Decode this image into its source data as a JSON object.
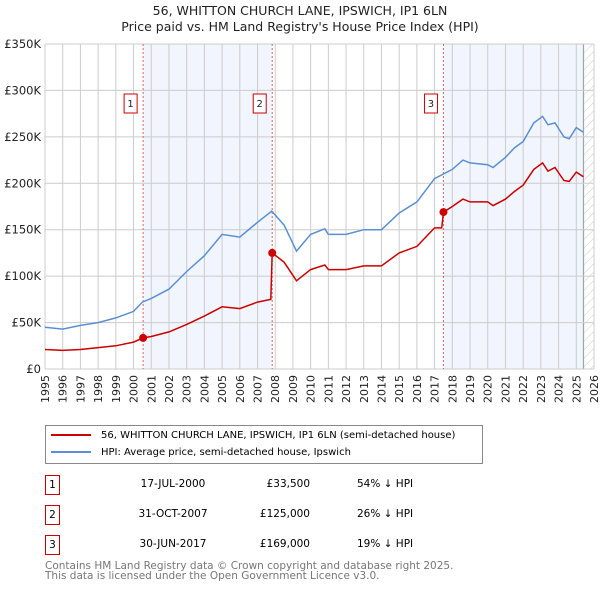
{
  "title_line1": "56, WHITTON CHURCH LANE, IPSWICH, IP1 6LN",
  "title_line2": "Price paid vs. HM Land Registry's House Price Index (HPI)",
  "chart_data": {
    "type": "line",
    "title": "56, WHITTON CHURCH LANE, IPSWICH, IP1 6LN - Price paid vs. HM Land Registry's House Price Index (HPI)",
    "xlim": [
      1995,
      2026
    ],
    "ylim": [
      0,
      350000
    ],
    "grid": true,
    "yticks": [
      0,
      50000,
      100000,
      150000,
      200000,
      250000,
      300000,
      350000
    ],
    "ytick_labels": [
      "£0",
      "£50K",
      "£100K",
      "£150K",
      "£200K",
      "£250K",
      "£300K",
      "£350K"
    ],
    "xticks": [
      "1995",
      "1996",
      "1997",
      "1998",
      "1999",
      "2000",
      "2001",
      "2002",
      "2003",
      "2004",
      "2005",
      "2006",
      "2007",
      "2008",
      "2009",
      "2010",
      "2011",
      "2012",
      "2013",
      "2014",
      "2015",
      "2016",
      "2017",
      "2018",
      "2019",
      "2020",
      "2021",
      "2022",
      "2023",
      "2024",
      "2025",
      "2026"
    ],
    "shaded_ranges": [
      [
        2000.54,
        2007.83
      ],
      [
        2017.5,
        2025.5
      ]
    ],
    "data_end": 2025.4,
    "series": [
      {
        "name": "56, WHITTON CHURCH LANE, IPSWICH, IP1 6LN (semi-detached house)",
        "color": "#cc0000",
        "x": [
          1995,
          1996,
          1997,
          1998,
          1999,
          2000,
          2000.54,
          2001,
          2002,
          2003,
          2004,
          2005,
          2006,
          2007,
          2007.75,
          2007.83,
          2008.5,
          2009.2,
          2010,
          2010.8,
          2011,
          2012,
          2013,
          2014,
          2015,
          2016,
          2017,
          2017.4,
          2017.5,
          2018,
          2018.6,
          2019,
          2020,
          2020.3,
          2021,
          2021.5,
          2022,
          2022.6,
          2023.1,
          2023.4,
          2023.8,
          2024.3,
          2024.6,
          2025,
          2025.4
        ],
        "y": [
          21000,
          20000,
          21000,
          23000,
          25000,
          29000,
          33500,
          35000,
          40000,
          48000,
          57000,
          67000,
          65000,
          72000,
          75000,
          125000,
          115000,
          95000,
          107000,
          112000,
          107000,
          107000,
          111000,
          111000,
          125000,
          132000,
          152000,
          152000,
          169000,
          175000,
          183000,
          180000,
          180000,
          176000,
          183000,
          191000,
          198000,
          215000,
          222000,
          213000,
          217000,
          203000,
          202000,
          212000,
          207000
        ]
      },
      {
        "name": "HPI: Average price, semi-detached house, Ipswich",
        "color": "#5b8fd4",
        "x": [
          1995,
          1996,
          1997,
          1998,
          1999,
          2000,
          2000.5,
          2001,
          2002,
          2003,
          2004,
          2005,
          2006,
          2007,
          2007.8,
          2008.5,
          2009.2,
          2010,
          2010.8,
          2011,
          2012,
          2013,
          2014,
          2015,
          2016,
          2017,
          2018,
          2018.6,
          2019,
          2020,
          2020.3,
          2021,
          2021.5,
          2022,
          2022.6,
          2023.1,
          2023.4,
          2023.8,
          2024.3,
          2024.6,
          2025,
          2025.4
        ],
        "y": [
          45000,
          43000,
          47000,
          50000,
          55000,
          62000,
          72000,
          76000,
          86000,
          105000,
          122000,
          145000,
          142000,
          158000,
          170000,
          155000,
          127000,
          145000,
          151000,
          145000,
          145000,
          150000,
          150000,
          168000,
          180000,
          205000,
          215000,
          225000,
          222000,
          220000,
          217000,
          228000,
          238000,
          245000,
          265000,
          272000,
          263000,
          265000,
          250000,
          248000,
          260000,
          255000
        ]
      }
    ],
    "sales": [
      {
        "label": "1",
        "x": 2000.54,
        "y": 33500
      },
      {
        "label": "2",
        "x": 2007.83,
        "y": 125000
      },
      {
        "label": "3",
        "x": 2017.5,
        "y": 169000
      }
    ]
  },
  "legend": {
    "property": "56, WHITTON CHURCH LANE, IPSWICH, IP1 6LN (semi-detached house)",
    "hpi": "HPI: Average price, semi-detached house, Ipswich"
  },
  "transactions": [
    {
      "num": "1",
      "date": "17-JUL-2000",
      "price": "£33,500",
      "hpi": "54% ↓ HPI"
    },
    {
      "num": "2",
      "date": "31-OCT-2007",
      "price": "£125,000",
      "hpi": "26% ↓ HPI"
    },
    {
      "num": "3",
      "date": "30-JUN-2017",
      "price": "£169,000",
      "hpi": "19% ↓ HPI"
    }
  ],
  "footer_line1": "Contains HM Land Registry data © Crown copyright and database right 2025.",
  "footer_line2": "This data is licensed under the Open Government Licence v3.0."
}
